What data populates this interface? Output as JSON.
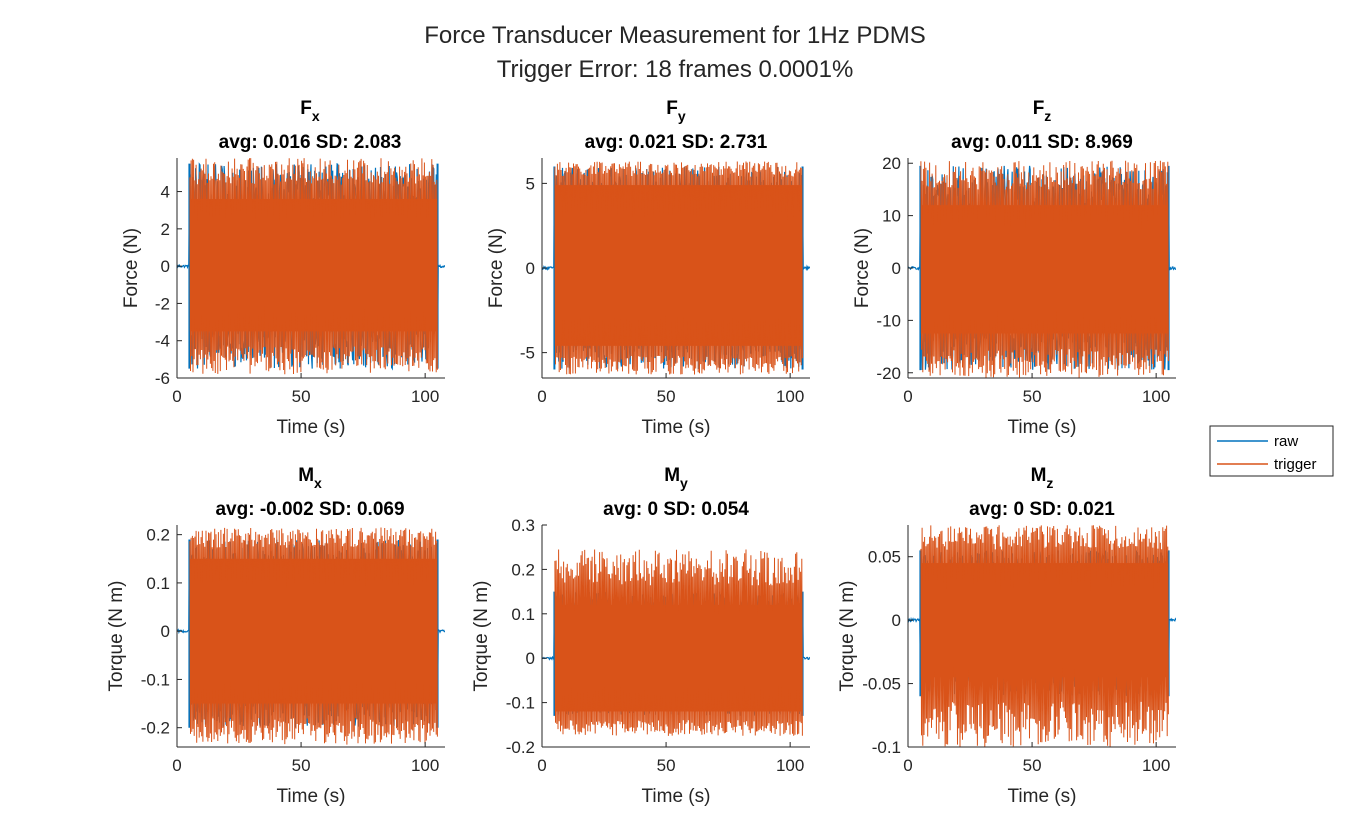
{
  "figure": {
    "title_line1": "Force Transducer Measurement for 1Hz PDMS",
    "title_line2": "Trigger Error: 18 frames 0.0001%"
  },
  "legend": {
    "placement": "right-middle",
    "entries": [
      {
        "label": "raw",
        "color": "#0072BD"
      },
      {
        "label": "trigger",
        "color": "#D95319"
      }
    ]
  },
  "colors": {
    "raw": "#0072BD",
    "trigger": "#D95319",
    "axis": "#262626"
  },
  "chart_data": [
    {
      "type": "line",
      "title_main": "F",
      "title_sub": "x",
      "title_stats": "avg: 0.016 SD: 2.083",
      "xlabel": "Time (s)",
      "ylabel": "Force (N)",
      "xlim": [
        0,
        108
      ],
      "ylim": [
        -6,
        5.8
      ],
      "xticks": [
        0,
        50,
        100
      ],
      "xtick_labels": [
        "0",
        "50",
        "100"
      ],
      "yticks": [
        4,
        2,
        0,
        -2,
        -4,
        -6
      ],
      "ytick_labels": [
        "4",
        "2",
        "0",
        "-2",
        "-4",
        "-6"
      ],
      "series": [
        {
          "name": "raw",
          "active_start": 5,
          "active_end": 105,
          "upper": 5.5,
          "lower": -5.5
        },
        {
          "name": "trigger",
          "start": 5.2,
          "end": 104.8,
          "inner_upper": 3.6,
          "inner_lower": -3.5,
          "peak_upper": 5.8,
          "peak_lower": -5.8
        }
      ]
    },
    {
      "type": "line",
      "title_main": "F",
      "title_sub": "y",
      "title_stats": "avg: 0.021 SD: 2.731",
      "xlabel": "Time (s)",
      "ylabel": "Force (N)",
      "xlim": [
        0,
        108
      ],
      "ylim": [
        -6.5,
        6.5
      ],
      "xticks": [
        0,
        50,
        100
      ],
      "xtick_labels": [
        "0",
        "50",
        "100"
      ],
      "yticks": [
        5,
        0,
        -5
      ],
      "ytick_labels": [
        "5",
        "0",
        "-5"
      ],
      "series": [
        {
          "name": "raw",
          "active_start": 5,
          "active_end": 105,
          "upper": 6.0,
          "lower": -6.0
        },
        {
          "name": "trigger",
          "start": 5.2,
          "end": 104.8,
          "inner_upper": 4.9,
          "inner_lower": -4.6,
          "peak_upper": 6.3,
          "peak_lower": -6.3
        }
      ]
    },
    {
      "type": "line",
      "title_main": "F",
      "title_sub": "z",
      "title_stats": "avg: 0.011 SD: 8.969",
      "xlabel": "Time (s)",
      "ylabel": "Force (N)",
      "xlim": [
        0,
        108
      ],
      "ylim": [
        -21,
        21
      ],
      "xticks": [
        0,
        50,
        100
      ],
      "xtick_labels": [
        "0",
        "50",
        "100"
      ],
      "yticks": [
        20,
        10,
        0,
        -10,
        -20
      ],
      "ytick_labels": [
        "20",
        "10",
        "0",
        "-10",
        "-20"
      ],
      "series": [
        {
          "name": "raw",
          "active_start": 5,
          "active_end": 105,
          "upper": 19.5,
          "lower": -19.5
        },
        {
          "name": "trigger",
          "start": 5.2,
          "end": 104.8,
          "inner_upper": 12.0,
          "inner_lower": -12.5,
          "peak_upper": 20.5,
          "peak_lower": -21
        }
      ]
    },
    {
      "type": "line",
      "title_main": "M",
      "title_sub": "x",
      "title_stats": "avg: -0.002 SD: 0.069",
      "xlabel": "Time (s)",
      "ylabel": "Torque (N m)",
      "xlim": [
        0,
        108
      ],
      "ylim": [
        -0.24,
        0.22
      ],
      "xticks": [
        0,
        50,
        100
      ],
      "xtick_labels": [
        "0",
        "50",
        "100"
      ],
      "yticks": [
        0.2,
        0.1,
        0,
        -0.1,
        -0.2
      ],
      "ytick_labels": [
        "0.2",
        "0.1",
        "0",
        "-0.1",
        "-0.2"
      ],
      "series": [
        {
          "name": "raw",
          "active_start": 5,
          "active_end": 105,
          "upper": 0.19,
          "lower": -0.2
        },
        {
          "name": "trigger",
          "start": 5.2,
          "end": 104.8,
          "inner_upper": 0.15,
          "inner_lower": -0.15,
          "peak_upper": 0.215,
          "peak_lower": -0.235
        }
      ]
    },
    {
      "type": "line",
      "title_main": "M",
      "title_sub": "y",
      "title_stats": "avg: 0 SD: 0.054",
      "xlabel": "Time (s)",
      "ylabel": "Torque (N m)",
      "xlim": [
        0,
        108
      ],
      "ylim": [
        -0.2,
        0.3
      ],
      "xticks": [
        0,
        50,
        100
      ],
      "xtick_labels": [
        "0",
        "50",
        "100"
      ],
      "yticks": [
        0.3,
        0.2,
        0.1,
        0,
        -0.1,
        -0.2
      ],
      "ytick_labels": [
        "0.3",
        "0.2",
        "0.1",
        "0",
        "-0.1",
        "-0.2"
      ],
      "series": [
        {
          "name": "raw",
          "active_start": 5,
          "active_end": 105,
          "upper": 0.15,
          "lower": -0.13
        },
        {
          "name": "trigger",
          "start": 5.2,
          "end": 104.8,
          "inner_upper": 0.12,
          "inner_lower": -0.12,
          "peak_upper": 0.245,
          "peak_lower": -0.175
        }
      ]
    },
    {
      "type": "line",
      "title_main": "M",
      "title_sub": "z",
      "title_stats": "avg: 0 SD: 0.021",
      "xlabel": "Time (s)",
      "ylabel": "Torque (N m)",
      "xlim": [
        0,
        108
      ],
      "ylim": [
        -0.1,
        0.075
      ],
      "xticks": [
        0,
        50,
        100
      ],
      "xtick_labels": [
        "0",
        "50",
        "100"
      ],
      "yticks": [
        0.05,
        0,
        -0.05,
        -0.1
      ],
      "ytick_labels": [
        "0.05",
        "0",
        "-0.05",
        "-0.1"
      ],
      "series": [
        {
          "name": "raw",
          "active_start": 5,
          "active_end": 105,
          "upper": 0.055,
          "lower": -0.06
        },
        {
          "name": "trigger",
          "start": 5.2,
          "end": 104.8,
          "inner_upper": 0.045,
          "inner_lower": -0.045,
          "peak_upper": 0.075,
          "peak_lower": -0.1
        }
      ]
    }
  ]
}
